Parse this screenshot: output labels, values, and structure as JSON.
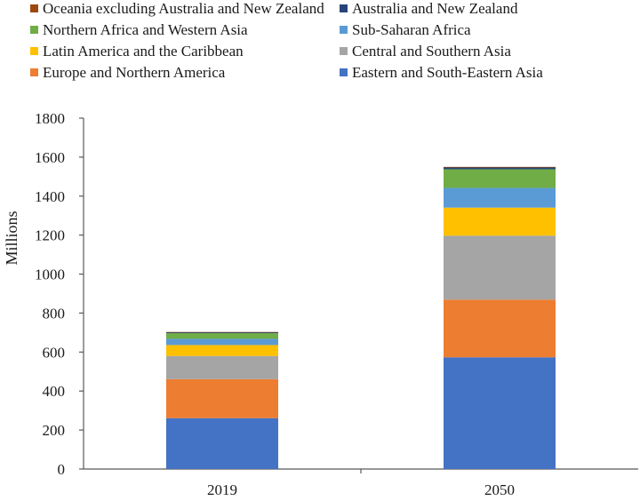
{
  "chart_data": {
    "type": "bar",
    "stacked": true,
    "title": "",
    "xlabel": "",
    "ylabel": "Millions",
    "ylim": [
      0,
      1800
    ],
    "yticks": [
      0,
      200,
      400,
      600,
      800,
      1000,
      1200,
      1400,
      1600,
      1800
    ],
    "categories": [
      "2019",
      "2050"
    ],
    "legend_position": "top",
    "grid": false,
    "series": [
      {
        "name": "Eastern and South-Eastern Asia",
        "color": "#4472C4",
        "values": [
          261,
          573
        ]
      },
      {
        "name": "Europe and Northern America",
        "color": "#ED7D31",
        "values": [
          200,
          296
        ]
      },
      {
        "name": "Central and Southern Asia",
        "color": "#A5A5A5",
        "values": [
          119,
          328
        ]
      },
      {
        "name": "Latin America and the Caribbean",
        "color": "#FFC000",
        "values": [
          56,
          144
        ]
      },
      {
        "name": "Sub-Saharan Africa",
        "color": "#5B9BD5",
        "values": [
          32,
          101
        ]
      },
      {
        "name": "Northern Africa and Western Asia",
        "color": "#70AD47",
        "values": [
          29,
          96
        ]
      },
      {
        "name": "Australia and New Zealand",
        "color": "#264478",
        "values": [
          5,
          9
        ]
      },
      {
        "name": "Oceania excluding Australia and New Zealand",
        "color": "#9E480E",
        "values": [
          1,
          3
        ]
      }
    ],
    "legend_order": [
      "Oceania excluding Australia and New Zealand",
      "Australia and New Zealand",
      "Northern Africa and Western Asia",
      "Sub-Saharan Africa",
      "Latin America and the Caribbean",
      "Central and Southern Asia",
      "Europe and Northern America",
      "Eastern and South-Eastern Asia"
    ]
  }
}
